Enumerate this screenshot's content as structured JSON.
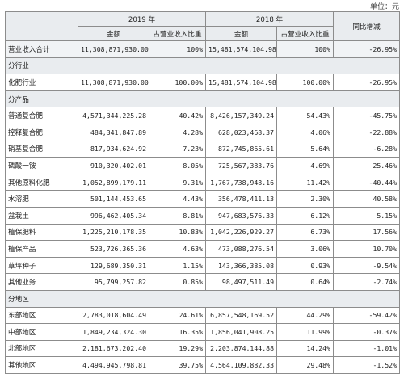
{
  "unit": "单位：元",
  "header": {
    "year_2019": "2019 年",
    "year_2018": "2018 年",
    "yoy": "同比增减",
    "amount": "金额",
    "share": "占营业收入比重"
  },
  "total_row": {
    "label": "营业收入合计",
    "amount_2019": "11,308,871,930.00",
    "share_2019": "100%",
    "amount_2018": "15,481,574,104.98",
    "share_2018": "100%",
    "yoy": "-26.95%"
  },
  "sections": {
    "industry": "分行业",
    "product": "分产品",
    "region": "分地区"
  },
  "industry_rows": [
    {
      "label": "化肥行业",
      "amount_2019": "11,308,871,930.00",
      "share_2019": "100.00%",
      "amount_2018": "15,481,574,104.98",
      "share_2018": "100.00%",
      "yoy": "-26.95%"
    }
  ],
  "product_rows": [
    {
      "label": "普通复合肥",
      "amount_2019": "4,571,344,225.28",
      "share_2019": "40.42%",
      "amount_2018": "8,426,157,349.24",
      "share_2018": "54.43%",
      "yoy": "-45.75%"
    },
    {
      "label": "控释复合肥",
      "amount_2019": "484,341,847.89",
      "share_2019": "4.28%",
      "amount_2018": "628,023,468.37",
      "share_2018": "4.06%",
      "yoy": "-22.88%"
    },
    {
      "label": "硝基复合肥",
      "amount_2019": "817,934,624.92",
      "share_2019": "7.23%",
      "amount_2018": "872,745,865.61",
      "share_2018": "5.64%",
      "yoy": "-6.28%"
    },
    {
      "label": "磷酸一铵",
      "amount_2019": "910,320,402.01",
      "share_2019": "8.05%",
      "amount_2018": "725,567,383.76",
      "share_2018": "4.69%",
      "yoy": "25.46%"
    },
    {
      "label": "其他原料化肥",
      "amount_2019": "1,052,899,179.11",
      "share_2019": "9.31%",
      "amount_2018": "1,767,738,948.16",
      "share_2018": "11.42%",
      "yoy": "-40.44%"
    },
    {
      "label": "水溶肥",
      "amount_2019": "501,144,453.65",
      "share_2019": "4.43%",
      "amount_2018": "356,478,411.13",
      "share_2018": "2.30%",
      "yoy": "40.58%"
    },
    {
      "label": "盆栽土",
      "amount_2019": "996,462,405.34",
      "share_2019": "8.81%",
      "amount_2018": "947,683,576.33",
      "share_2018": "6.12%",
      "yoy": "5.15%"
    },
    {
      "label": "植保肥料",
      "amount_2019": "1,225,210,178.35",
      "share_2019": "10.83%",
      "amount_2018": "1,042,226,929.27",
      "share_2018": "6.73%",
      "yoy": "17.56%"
    },
    {
      "label": "植保产品",
      "amount_2019": "523,726,365.36",
      "share_2019": "4.63%",
      "amount_2018": "473,088,276.54",
      "share_2018": "3.06%",
      "yoy": "10.70%"
    },
    {
      "label": "草坪种子",
      "amount_2019": "129,689,350.31",
      "share_2019": "1.15%",
      "amount_2018": "143,366,385.08",
      "share_2018": "0.93%",
      "yoy": "-9.54%"
    },
    {
      "label": "其他业务",
      "amount_2019": "95,799,257.82",
      "share_2019": "0.85%",
      "amount_2018": "98,497,511.49",
      "share_2018": "0.64%",
      "yoy": "-2.74%"
    }
  ],
  "region_rows": [
    {
      "label": "东部地区",
      "amount_2019": "2,783,018,604.49",
      "share_2019": "24.61%",
      "amount_2018": "6,857,548,169.52",
      "share_2018": "44.29%",
      "yoy": "-59.42%"
    },
    {
      "label": "中部地区",
      "amount_2019": "1,849,234,324.30",
      "share_2019": "16.35%",
      "amount_2018": "1,856,041,908.25",
      "share_2018": "11.99%",
      "yoy": "-0.37%"
    },
    {
      "label": "北部地区",
      "amount_2019": "2,181,673,202.40",
      "share_2019": "19.29%",
      "amount_2018": "2,203,874,144.88",
      "share_2018": "14.24%",
      "yoy": "-1.01%"
    },
    {
      "label": "其他地区",
      "amount_2019": "4,494,945,798.81",
      "share_2019": "39.75%",
      "amount_2018": "4,564,109,882.33",
      "share_2018": "29.48%",
      "yoy": "-1.52%"
    }
  ]
}
